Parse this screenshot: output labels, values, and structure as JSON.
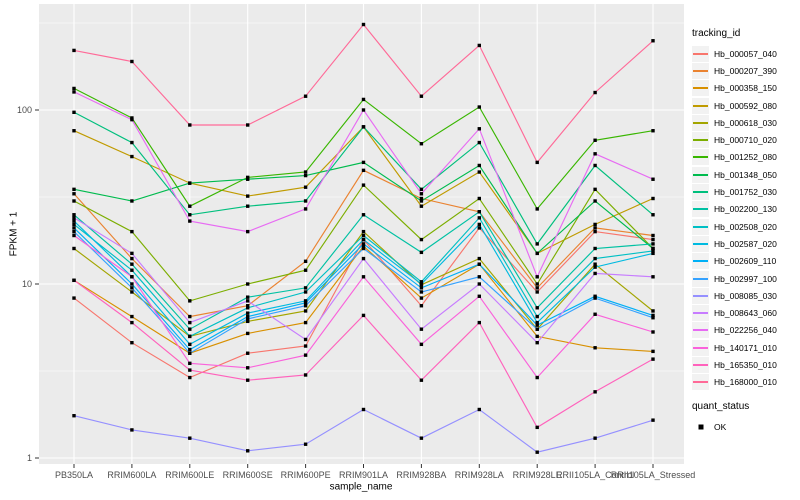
{
  "figure": {
    "background": "#FFFFFF",
    "panel_background": "#EBEBEB",
    "grid_color": "#FFFFFF"
  },
  "legend": {
    "tracking_title": "tracking_id",
    "quant_title": "quant_status",
    "quant_items": [
      {
        "label": "OK",
        "marker": "black-square"
      }
    ]
  },
  "chart_data": {
    "type": "line",
    "title": "",
    "xlabel": "sample_name",
    "ylabel": "FPKM + 1",
    "y_scale": "log10",
    "ylim": [
      1,
      450
    ],
    "y_ticks": [
      1,
      10,
      100
    ],
    "y_tick_labels": [
      "1",
      "10",
      "100"
    ],
    "y_minor_ticks": [
      3.162,
      31.62,
      316.2
    ],
    "grid": true,
    "legend_position": "right",
    "point_marker": {
      "shape": "square",
      "color": "#000000",
      "meaning": "quant_status OK"
    },
    "colors": {
      "panel_bg": "#EBEBEB",
      "grid": "#FFFFFF",
      "axis_text": "#4D4D4D",
      "tick_mark": "#333333"
    },
    "categories": [
      "PB350LA",
      "RRIM600LA",
      "RRIM600LE",
      "RRIM600SE",
      "RRIM600PE",
      "RRIM901LA",
      "RRIM928BA",
      "RRIM928LA",
      "RRIM928LE",
      "RRII105LA_Control",
      "RRII105LA_Stressed"
    ],
    "series": [
      {
        "name": "Hb_000057_040",
        "color": "#F8766D",
        "values": [
          8.3,
          4.6,
          2.9,
          4.0,
          4.4,
          18,
          7.5,
          21,
          9,
          20,
          18
        ]
      },
      {
        "name": "Hb_000207_390",
        "color": "#EA8331",
        "values": [
          33,
          14,
          6.5,
          7.5,
          13.5,
          45,
          31,
          26,
          9.5,
          21,
          19
        ]
      },
      {
        "name": "Hb_000358_150",
        "color": "#D89000",
        "values": [
          10.5,
          6.5,
          4.0,
          5.2,
          6.0,
          16.5,
          8.3,
          13,
          5.0,
          4.3,
          4.1
        ]
      },
      {
        "name": "Hb_000592_080",
        "color": "#C09B00",
        "values": [
          76,
          54,
          38,
          32,
          36,
          80,
          28,
          44,
          15,
          22,
          31
        ]
      },
      {
        "name": "Hb_000618_030",
        "color": "#A3A500",
        "values": [
          16,
          9,
          5.0,
          6.1,
          7.0,
          20,
          9.9,
          14,
          5.5,
          13,
          7
        ]
      },
      {
        "name": "Hb_000710_020",
        "color": "#7CAE00",
        "values": [
          30,
          20,
          8,
          10,
          12,
          37,
          18,
          31,
          10,
          35,
          16
        ]
      },
      {
        "name": "Hb_001252_080",
        "color": "#39B600",
        "values": [
          133,
          90,
          28,
          41,
          44,
          115,
          64,
          104,
          27,
          67,
          76
        ]
      },
      {
        "name": "Hb_001348_050",
        "color": "#00BB4E",
        "values": [
          35,
          30,
          38,
          40,
          42,
          50,
          30,
          48,
          15,
          30,
          16
        ]
      },
      {
        "name": "Hb_001752_030",
        "color": "#00BF7D",
        "values": [
          97,
          65,
          25,
          28,
          30,
          80,
          35,
          65,
          17,
          48,
          25
        ]
      },
      {
        "name": "Hb_002200_130",
        "color": "#00C1A3",
        "values": [
          25,
          13,
          5.5,
          8.4,
          9.5,
          25,
          15.2,
          26,
          7.3,
          16,
          17
        ]
      },
      {
        "name": "Hb_002508_020",
        "color": "#00BFC4",
        "values": [
          22,
          12,
          5.0,
          7.3,
          9.0,
          19,
          10.3,
          24,
          6.5,
          14,
          15.5
        ]
      },
      {
        "name": "Hb_002587_020",
        "color": "#00BAE0",
        "values": [
          23,
          11,
          4.5,
          6.8,
          8.0,
          18,
          10,
          22,
          6.0,
          12.5,
          15
        ]
      },
      {
        "name": "Hb_002609_110",
        "color": "#00B0F6",
        "values": [
          21,
          10,
          4.2,
          6.5,
          7.8,
          17,
          9.5,
          13,
          5.8,
          8.5,
          6.6
        ]
      },
      {
        "name": "Hb_002997_100",
        "color": "#35A2FF",
        "values": [
          20,
          9.5,
          4.0,
          6.3,
          7.5,
          16,
          9.0,
          11,
          5.5,
          8.3,
          6.4
        ]
      },
      {
        "name": "Hb_008085_030",
        "color": "#9590FF",
        "values": [
          1.75,
          1.45,
          1.3,
          1.1,
          1.2,
          1.9,
          1.3,
          1.9,
          1.08,
          1.3,
          1.65
        ]
      },
      {
        "name": "Hb_008643_060",
        "color": "#C77CFF",
        "values": [
          24,
          15,
          6.0,
          8.0,
          4.8,
          14,
          5.5,
          10,
          4.6,
          11.5,
          11
        ]
      },
      {
        "name": "Hb_022256_040",
        "color": "#E76BF3",
        "values": [
          127,
          88,
          23,
          20,
          27,
          100,
          33,
          78,
          11,
          56,
          40
        ]
      },
      {
        "name": "Hb_140171_010",
        "color": "#FA62DB",
        "values": [
          19,
          11,
          3.5,
          3.3,
          3.9,
          11,
          4.5,
          8.5,
          2.9,
          6.7,
          5.3
        ]
      },
      {
        "name": "Hb_165350_010",
        "color": "#FF62BC",
        "values": [
          10.5,
          6.0,
          3.2,
          2.8,
          3.0,
          6.6,
          2.8,
          6.0,
          1.5,
          2.4,
          3.7
        ]
      },
      {
        "name": "Hb_168000_010",
        "color": "#FF6A98",
        "values": [
          220,
          190,
          82,
          82,
          120,
          310,
          120,
          235,
          50,
          126,
          250
        ]
      }
    ]
  }
}
